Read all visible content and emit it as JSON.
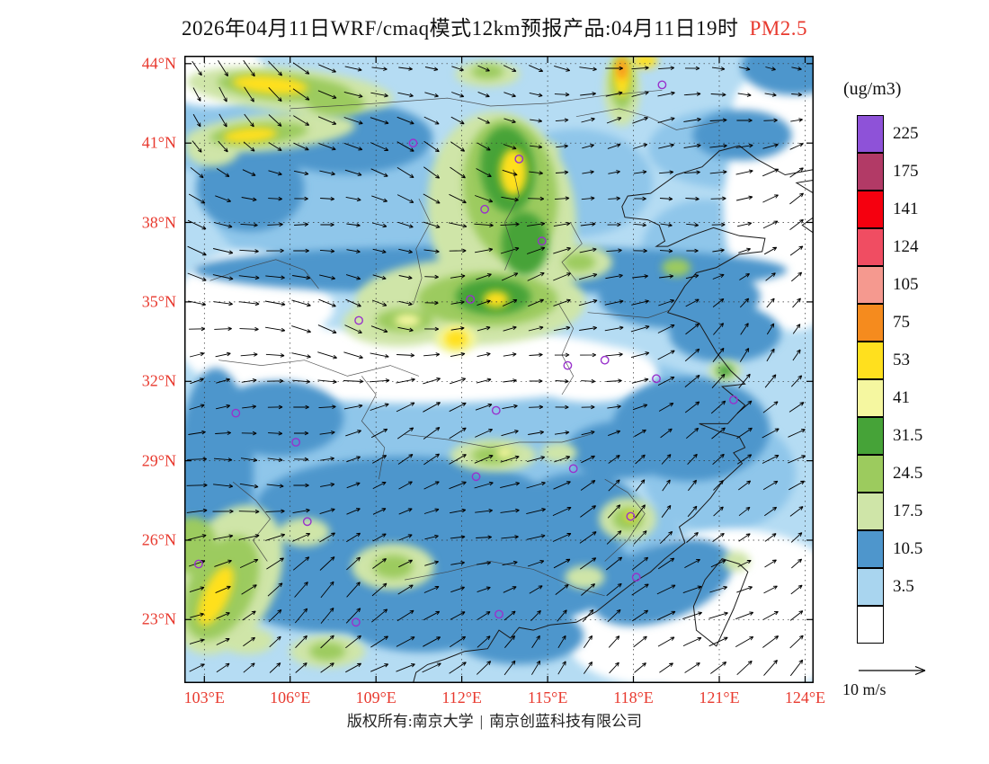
{
  "title": {
    "text": "2026年04月11日WRF/cmaq模式12km预报产品:04月11日19时",
    "pollutant": "PM2.5"
  },
  "colorbar": {
    "unit": "(ug/m3)",
    "boxes": [
      {
        "label": "225",
        "color": "#8E52D8"
      },
      {
        "label": "175",
        "color": "#B23A66"
      },
      {
        "label": "141",
        "color": "#F5000F"
      },
      {
        "label": "124",
        "color": "#F04D62"
      },
      {
        "label": "105",
        "color": "#F5998F"
      },
      {
        "label": "75",
        "color": "#F58B1E"
      },
      {
        "label": "53",
        "color": "#FFE01E"
      },
      {
        "label": "41",
        "color": "#F5F7A0"
      },
      {
        "label": "31.5",
        "color": "#46A338"
      },
      {
        "label": "24.5",
        "color": "#9CCB5E"
      },
      {
        "label": "17.5",
        "color": "#CFE5A8"
      },
      {
        "label": "10.5",
        "color": "#4E96CC"
      },
      {
        "label": "3.5",
        "color": "#A9D5EF"
      },
      {
        "label": "",
        "color": "#FFFFFF"
      }
    ]
  },
  "axes": {
    "lat_labels": [
      "44°N",
      "41°N",
      "38°N",
      "35°N",
      "32°N",
      "29°N",
      "26°N",
      "23°N"
    ],
    "lat_values": [
      44,
      41,
      38,
      35,
      32,
      29,
      26,
      23
    ],
    "lon_labels": [
      "103°E",
      "106°E",
      "109°E",
      "112°E",
      "115°E",
      "118°E",
      "121°E",
      "124°E"
    ],
    "lon_values": [
      103,
      106,
      109,
      112,
      115,
      118,
      121,
      124
    ]
  },
  "wind_legend": {
    "label": "10 m/s"
  },
  "footer": {
    "copyright_left": "版权所有:南京大学",
    "divider": "|",
    "copyright_right": "南京创蓝科技有限公司"
  },
  "map": {
    "domain": {
      "lon_min": 102.3,
      "lon_max": 124.3,
      "lat_min": 20.6,
      "lat_max": 44.3
    },
    "palette": {
      "base": "#B5DCF3",
      "mb": "#8FC6EA",
      "white": "#FFFFFF",
      "sb": "#4E96CC",
      "pg": "#CFE5A8",
      "lg": "#9CCB5E",
      "g": "#46A338",
      "py": "#F5F7A0",
      "y": "#FFE01E",
      "o": "#F58B1E"
    },
    "marker_color": "#9932CC",
    "stations": [
      [
        119.0,
        43.2
      ],
      [
        110.3,
        41.0
      ],
      [
        114.0,
        40.4
      ],
      [
        112.8,
        38.5
      ],
      [
        114.8,
        37.3
      ],
      [
        112.3,
        35.1
      ],
      [
        108.4,
        34.3
      ],
      [
        117.0,
        32.8
      ],
      [
        115.7,
        32.6
      ],
      [
        118.8,
        32.1
      ],
      [
        113.2,
        30.9
      ],
      [
        104.1,
        30.8
      ],
      [
        106.2,
        29.7
      ],
      [
        115.9,
        28.7
      ],
      [
        112.5,
        28.4
      ],
      [
        117.9,
        26.9
      ],
      [
        102.8,
        25.1
      ],
      [
        106.6,
        26.7
      ],
      [
        108.3,
        22.9
      ],
      [
        113.3,
        23.2
      ],
      [
        118.1,
        24.6
      ],
      [
        121.5,
        31.3
      ]
    ],
    "blobs": [
      [
        108.0,
        38.5,
        150,
        80,
        0,
        "mb"
      ],
      [
        116.0,
        39.5,
        85,
        60,
        0,
        "mb"
      ],
      [
        120.5,
        37.0,
        70,
        55,
        0,
        "mb"
      ],
      [
        112.0,
        30.0,
        210,
        60,
        0,
        "mb"
      ],
      [
        118.0,
        31.2,
        85,
        45,
        0,
        "mb"
      ],
      [
        106.0,
        27.5,
        120,
        85,
        0,
        "mb"
      ],
      [
        115.0,
        25.5,
        160,
        75,
        0,
        "mb"
      ],
      [
        121.0,
        28.5,
        85,
        65,
        0,
        "mb"
      ],
      [
        104.0,
        41.5,
        85,
        55,
        0,
        "mb"
      ],
      [
        121.5,
        40.8,
        95,
        45,
        0,
        "mb"
      ],
      [
        110.5,
        24.0,
        120,
        60,
        0,
        "mb"
      ],
      [
        110.5,
        32.6,
        250,
        42,
        0,
        "white"
      ],
      [
        104.5,
        34.3,
        85,
        78,
        0,
        "white"
      ],
      [
        103.2,
        43.6,
        62,
        36,
        0,
        "white"
      ],
      [
        121.5,
        23.2,
        135,
        95,
        0,
        "white"
      ],
      [
        123.6,
        38.5,
        78,
        135,
        0,
        "white"
      ],
      [
        123.2,
        42.3,
        55,
        45,
        0,
        "white"
      ],
      [
        116.5,
        32.3,
        75,
        32,
        0,
        "white"
      ],
      [
        107.3,
        33.1,
        70,
        26,
        0,
        "white"
      ],
      [
        118.6,
        22.4,
        95,
        55,
        0,
        "white"
      ],
      [
        105.8,
        34.8,
        55,
        30,
        0,
        "white"
      ],
      [
        108.0,
        41.2,
        95,
        40,
        0,
        "sb"
      ],
      [
        104.6,
        39.3,
        60,
        48,
        0,
        "sb"
      ],
      [
        113.0,
        36.2,
        330,
        27,
        0,
        "sb"
      ],
      [
        119.6,
        35.2,
        90,
        36,
        0,
        "sb"
      ],
      [
        121.2,
        33.8,
        62,
        32,
        0,
        "sb"
      ],
      [
        120.0,
        30.2,
        88,
        58,
        0,
        "sb"
      ],
      [
        117.6,
        29.4,
        62,
        32,
        0,
        "sb"
      ],
      [
        110.0,
        27.3,
        165,
        55,
        0,
        "sb"
      ],
      [
        107.5,
        24.6,
        125,
        62,
        0,
        "sb"
      ],
      [
        113.5,
        24.8,
        145,
        56,
        0,
        "sb"
      ],
      [
        103.4,
        28.6,
        42,
        115,
        0,
        "sb"
      ],
      [
        105.6,
        30.6,
        72,
        42,
        0,
        "sb"
      ],
      [
        116.1,
        27.0,
        70,
        46,
        0,
        "sb"
      ],
      [
        119.0,
        24.4,
        82,
        42,
        -20,
        "sb"
      ],
      [
        123.6,
        43.9,
        58,
        32,
        0,
        "sb"
      ],
      [
        110.6,
        23.2,
        92,
        42,
        0,
        "sb"
      ],
      [
        114.0,
        22.4,
        72,
        32,
        0,
        "sb"
      ],
      [
        121.8,
        41.3,
        55,
        28,
        0,
        "sb"
      ],
      [
        106.0,
        43.0,
        115,
        24,
        5,
        "pg"
      ],
      [
        105.8,
        43.1,
        75,
        15,
        5,
        "lg"
      ],
      [
        105.3,
        43.2,
        42,
        10,
        5,
        "y"
      ],
      [
        107.6,
        42.5,
        32,
        13,
        0,
        "lg"
      ],
      [
        105.3,
        41.4,
        95,
        20,
        -5,
        "pg"
      ],
      [
        104.9,
        41.35,
        55,
        12,
        -5,
        "lg"
      ],
      [
        104.6,
        41.3,
        30,
        8,
        -5,
        "y"
      ],
      [
        103.3,
        40.8,
        30,
        20,
        0,
        "pg"
      ],
      [
        112.9,
        43.6,
        36,
        14,
        0,
        "pg"
      ],
      [
        112.9,
        43.7,
        18,
        8,
        0,
        "lg"
      ],
      [
        117.6,
        43.0,
        20,
        40,
        0,
        "pg"
      ],
      [
        117.6,
        43.3,
        13,
        30,
        0,
        "lg"
      ],
      [
        117.6,
        43.5,
        9,
        22,
        0,
        "y"
      ],
      [
        117.6,
        43.8,
        5,
        12,
        0,
        "o"
      ],
      [
        118.4,
        44.1,
        14,
        8,
        0,
        "y"
      ],
      [
        113.4,
        38.3,
        82,
        115,
        -8,
        "pg"
      ],
      [
        112.3,
        35.0,
        128,
        48,
        0,
        "pg"
      ],
      [
        109.8,
        34.2,
        62,
        26,
        0,
        "pg"
      ],
      [
        113.7,
        39.2,
        52,
        80,
        -8,
        "lg"
      ],
      [
        112.9,
        35.1,
        78,
        30,
        0,
        "lg"
      ],
      [
        113.6,
        40.0,
        30,
        48,
        -5,
        "g"
      ],
      [
        114.2,
        37.2,
        26,
        35,
        0,
        "g"
      ],
      [
        113.1,
        35.2,
        42,
        20,
        0,
        "g"
      ],
      [
        110.0,
        34.3,
        32,
        13,
        0,
        "lg"
      ],
      [
        113.8,
        39.9,
        15,
        26,
        0,
        "y"
      ],
      [
        113.2,
        35.1,
        14,
        9,
        0,
        "y"
      ],
      [
        111.8,
        33.6,
        23,
        16,
        0,
        "py"
      ],
      [
        111.8,
        33.6,
        13,
        10,
        0,
        "y"
      ],
      [
        110.1,
        34.3,
        14,
        7,
        0,
        "py"
      ],
      [
        116.0,
        36.5,
        40,
        20,
        0,
        "pg"
      ],
      [
        116.1,
        36.5,
        18,
        10,
        0,
        "lg"
      ],
      [
        114.8,
        40.7,
        20,
        12,
        0,
        "pg"
      ],
      [
        119.5,
        36.3,
        16,
        10,
        0,
        "lg"
      ],
      [
        121.2,
        32.4,
        18,
        12,
        0,
        "pg"
      ],
      [
        121.2,
        32.4,
        9,
        7,
        0,
        "g"
      ],
      [
        103.8,
        24.5,
        55,
        88,
        25,
        "pg"
      ],
      [
        103.6,
        24.2,
        36,
        62,
        25,
        "lg"
      ],
      [
        103.4,
        23.9,
        14,
        36,
        25,
        "y"
      ],
      [
        102.6,
        25.8,
        26,
        32,
        0,
        "lg"
      ],
      [
        109.6,
        25.0,
        46,
        26,
        0,
        "pg"
      ],
      [
        109.6,
        25.0,
        22,
        13,
        0,
        "lg"
      ],
      [
        106.5,
        26.3,
        28,
        16,
        0,
        "pg"
      ],
      [
        113.1,
        29.2,
        48,
        18,
        0,
        "pg"
      ],
      [
        113.1,
        29.2,
        24,
        10,
        0,
        "lg"
      ],
      [
        113.5,
        29.3,
        9,
        6,
        0,
        "py"
      ],
      [
        115.4,
        29.3,
        20,
        11,
        0,
        "pg"
      ],
      [
        117.8,
        26.8,
        32,
        24,
        0,
        "pg"
      ],
      [
        117.8,
        26.8,
        17,
        13,
        0,
        "lg"
      ],
      [
        117.9,
        26.9,
        6,
        5,
        0,
        "y"
      ],
      [
        116.3,
        24.6,
        22,
        13,
        0,
        "pg"
      ],
      [
        121.6,
        25.2,
        15,
        11,
        0,
        "pg"
      ],
      [
        107.3,
        21.8,
        42,
        18,
        0,
        "pg"
      ],
      [
        107.3,
        21.8,
        20,
        10,
        0,
        "lg"
      ],
      [
        104.5,
        22.2,
        30,
        15,
        0,
        "pg"
      ]
    ]
  }
}
